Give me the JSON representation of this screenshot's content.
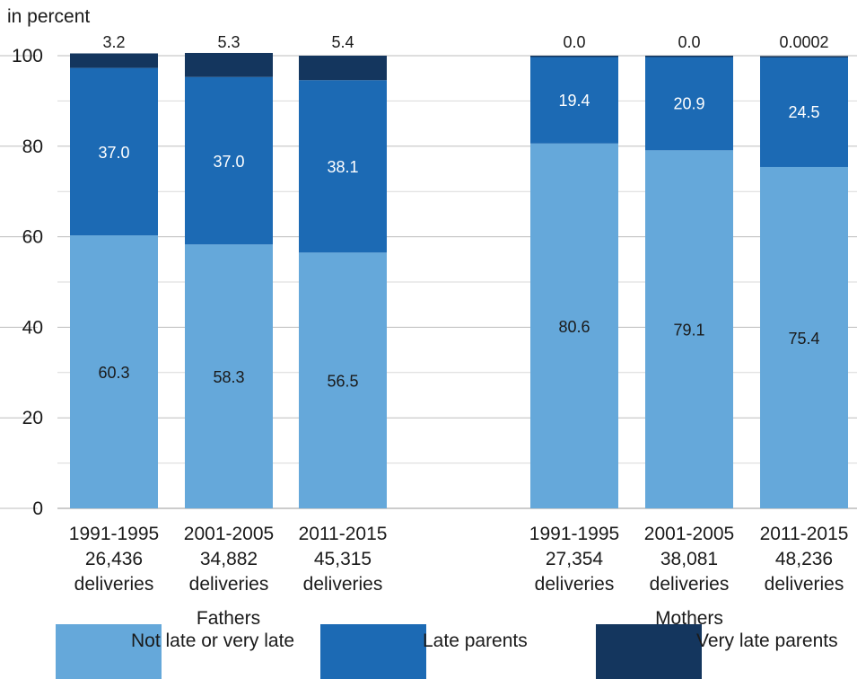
{
  "chart_data": {
    "type": "bar",
    "stacked": true,
    "unit_label": "in percent",
    "ylim": [
      0,
      100
    ],
    "yticks": [
      0,
      20,
      40,
      60,
      80,
      100
    ],
    "grid": true,
    "legend_placement": "bottom",
    "groups": [
      {
        "label": "Fathers",
        "category_indices": [
          0,
          1,
          2
        ]
      },
      {
        "label": "Mothers",
        "category_indices": [
          3,
          4,
          5
        ]
      }
    ],
    "categories": [
      {
        "period": "1991-1995",
        "count": "26,436",
        "unit": "deliveries"
      },
      {
        "period": "2001-2005",
        "count": "34,882",
        "unit": "deliveries"
      },
      {
        "period": "2011-2015",
        "count": "45,315",
        "unit": "deliveries"
      },
      {
        "period": "1991-1995",
        "count": "27,354",
        "unit": "deliveries"
      },
      {
        "period": "2001-2005",
        "count": "38,081",
        "unit": "deliveries"
      },
      {
        "period": "2011-2015",
        "count": "48,236",
        "unit": "deliveries"
      }
    ],
    "series": [
      {
        "name": "Not late or very late",
        "color": "#65a8da",
        "values": [
          60.3,
          58.3,
          56.5,
          80.6,
          79.1,
          75.4
        ],
        "labels": [
          "60.3",
          "58.3",
          "56.5",
          "80.6",
          "79.1",
          "75.4"
        ],
        "label_color": "#1a1a1a"
      },
      {
        "name": "Late parents",
        "color": "#1c6ab4",
        "values": [
          37.0,
          37.0,
          38.1,
          19.4,
          20.9,
          24.5
        ],
        "labels": [
          "37.0",
          "37.0",
          "38.1",
          "19.4",
          "20.9",
          "24.5"
        ],
        "label_color": "#ffffff"
      },
      {
        "name": "Very late parents",
        "color": "#14365e",
        "values": [
          3.2,
          5.3,
          5.4,
          0.0,
          0.0,
          0.0002
        ],
        "labels": [
          "3.2",
          "5.3",
          "5.4",
          "0.0",
          "0.0",
          "0.0002"
        ],
        "label_color": "#1a1a1a"
      }
    ]
  }
}
